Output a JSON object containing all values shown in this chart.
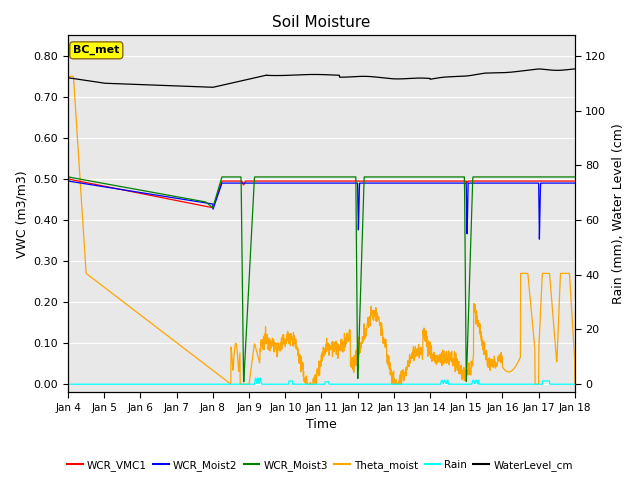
{
  "title": "Soil Moisture",
  "xlabel": "Time",
  "ylabel_left": "VWC (m3/m3)",
  "ylabel_right": "Rain (mm), Water Level (cm)",
  "ylim_left": [
    -0.02,
    0.85
  ],
  "ylim_right": [
    -3,
    127.5
  ],
  "yticks_left": [
    0.0,
    0.1,
    0.2,
    0.3,
    0.4,
    0.5,
    0.6,
    0.7,
    0.8
  ],
  "yticks_right": [
    0,
    20,
    40,
    60,
    80,
    100,
    120
  ],
  "xtick_labels": [
    "Jan 4",
    "Jan 5",
    "Jan 6",
    "Jan 7",
    "Jan 8",
    "Jan 9",
    "Jan 10",
    "Jan 11",
    "Jan 12",
    "Jan 13",
    "Jan 14",
    "Jan 15",
    "Jan 16",
    "Jan 17",
    "Jan 18"
  ],
  "bg_color": "#e8e8e8",
  "annotation_text": "BC_met"
}
